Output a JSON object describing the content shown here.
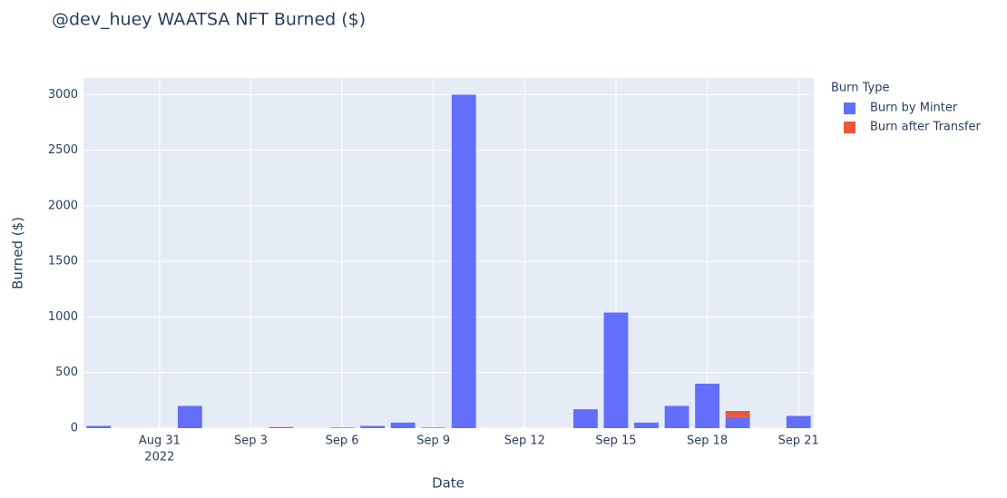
{
  "chart_data": {
    "type": "bar",
    "title": "@dev_huey WAATSA NFT Burned ($)",
    "x_label": "Date",
    "y_label": "Burned ($)",
    "legend_title": "Burn Type",
    "legend_position": "right",
    "barmode": "stack",
    "grid": true,
    "x": [
      "2022-08-29",
      "2022-09-01",
      "2022-09-04",
      "2022-09-06",
      "2022-09-07",
      "2022-09-08",
      "2022-09-09",
      "2022-09-10",
      "2022-09-14",
      "2022-09-15",
      "2022-09-16",
      "2022-09-17",
      "2022-09-18",
      "2022-09-19",
      "2022-09-21"
    ],
    "series": [
      {
        "name": "Burn by Minter",
        "color": "#636efa",
        "values": [
          20,
          200,
          null,
          5,
          20,
          50,
          5,
          3000,
          170,
          1040,
          50,
          200,
          400,
          100,
          110
        ]
      },
      {
        "name": "Burn after Transfer",
        "color": "#ef553b",
        "values": [
          null,
          null,
          10,
          null,
          null,
          null,
          null,
          null,
          null,
          null,
          null,
          null,
          null,
          55,
          null
        ]
      }
    ],
    "xlim": [
      "2022-08-28T12:00",
      "2022-09-21T12:00"
    ],
    "xticks": [
      {
        "value": "2022-08-31",
        "label": "Aug 31"
      },
      {
        "value": "2022-09-03",
        "label": "Sep 3"
      },
      {
        "value": "2022-09-06",
        "label": "Sep 6"
      },
      {
        "value": "2022-09-09",
        "label": "Sep 9"
      },
      {
        "value": "2022-09-12",
        "label": "Sep 12"
      },
      {
        "value": "2022-09-15",
        "label": "Sep 15"
      },
      {
        "value": "2022-09-18",
        "label": "Sep 18"
      },
      {
        "value": "2022-09-21",
        "label": "Sep 21"
      }
    ],
    "x_year_label": "2022",
    "ylim": [
      0,
      3150
    ],
    "yticks": [
      0,
      500,
      1000,
      1500,
      2000,
      2500,
      3000
    ]
  }
}
